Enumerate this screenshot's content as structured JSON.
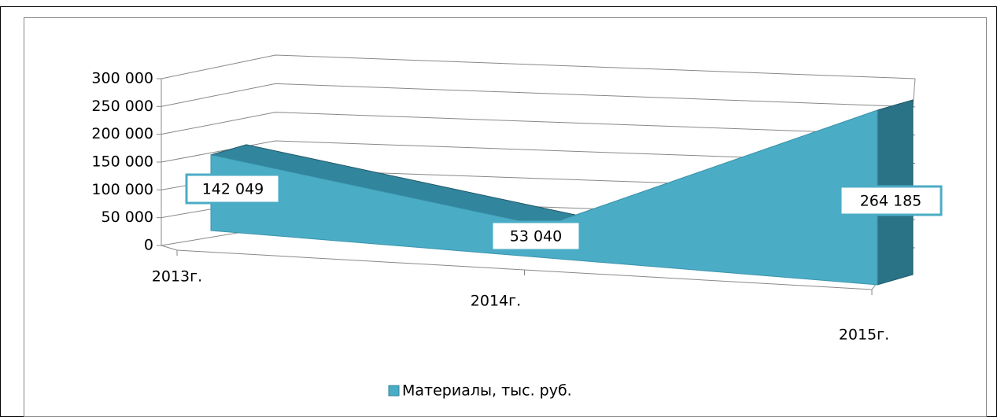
{
  "chart_data": {
    "type": "area3d",
    "categories": [
      "2013г.",
      "2014г.",
      "2015г."
    ],
    "series": [
      {
        "name": "Материалы, тыс. руб.",
        "color": "#4bacc6",
        "values": [
          142049,
          53040,
          264185
        ],
        "value_labels": [
          "142 049",
          "53 040",
          "264 185"
        ]
      }
    ],
    "ylim": [
      0,
      300000
    ],
    "yticks": [
      0,
      {
        "value": 50000,
        "label": "50 000"
      },
      {
        "value": 100000,
        "label": "100 000"
      },
      {
        "value": 150000,
        "label": "150 000"
      },
      {
        "value": 200000,
        "label": "200 000"
      },
      {
        "value": 250000,
        "label": "250 000"
      },
      {
        "value": 300000,
        "label": "300 000"
      }
    ],
    "grid": true,
    "legend": "bottom"
  }
}
